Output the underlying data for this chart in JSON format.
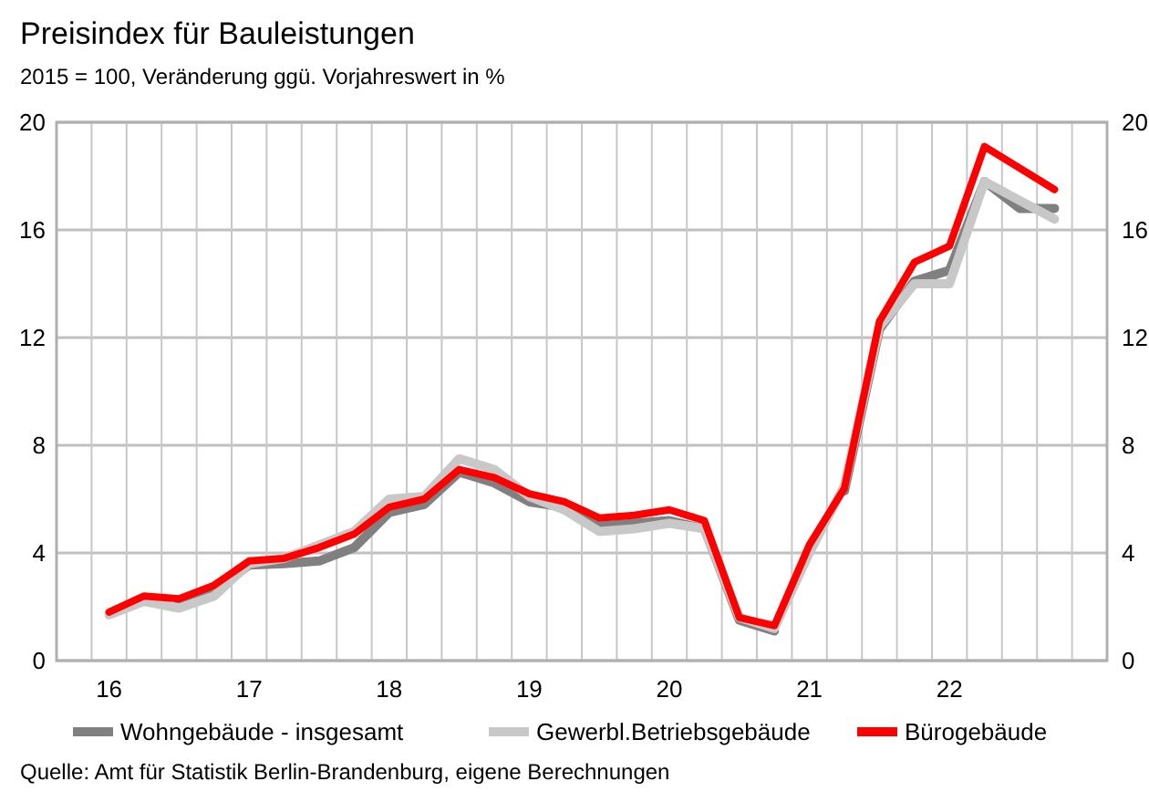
{
  "chart_data": {
    "type": "line",
    "title": "Preisindex für Bauleistungen",
    "subtitle": "2015 = 100, Veränderung ggü. Vorjahreswert in %",
    "x": [
      2016,
      2016.25,
      2016.5,
      2016.75,
      2017,
      2017.25,
      2017.5,
      2017.75,
      2018,
      2018.25,
      2018.5,
      2018.75,
      2019,
      2019.25,
      2019.5,
      2019.75,
      2020,
      2020.25,
      2020.5,
      2020.75,
      2021,
      2021.25,
      2021.5,
      2021.75,
      2022,
      2022.25,
      2022.5,
      2022.75
    ],
    "series": [
      {
        "name": "Wohngebäude - insgesamt",
        "color": "#808080",
        "values": [
          null,
          null,
          2.15,
          2.6,
          3.55,
          3.6,
          3.7,
          4.2,
          5.5,
          5.8,
          7.0,
          6.6,
          5.9,
          5.7,
          5.0,
          5.1,
          5.2,
          4.9,
          1.5,
          1.1,
          null,
          6.3,
          12.3,
          14.1,
          14.5,
          17.8,
          16.8,
          16.8
        ]
      },
      {
        "name": "Gewerbl.Betriebsgebäude",
        "color": "#c8c8c8",
        "values": [
          1.7,
          2.2,
          1.95,
          2.4,
          3.6,
          3.8,
          4.3,
          4.8,
          6.0,
          6.1,
          7.5,
          7.1,
          6.1,
          5.6,
          4.8,
          4.9,
          5.1,
          4.9,
          1.6,
          1.2,
          4.0,
          6.5,
          12.4,
          14.0,
          14.0,
          17.8,
          17.1,
          16.4
        ]
      },
      {
        "name": "Bürogebäude",
        "color": "#ff0000",
        "values": [
          1.8,
          2.4,
          2.3,
          2.8,
          3.7,
          3.8,
          4.2,
          4.7,
          5.7,
          6.0,
          7.1,
          6.8,
          6.2,
          5.9,
          5.3,
          5.4,
          5.6,
          5.2,
          1.6,
          1.3,
          4.3,
          6.4,
          12.6,
          14.8,
          15.4,
          19.1,
          18.3,
          17.5
        ]
      }
    ],
    "xlim": [
      2015.625,
      2023.125
    ],
    "xticks": [
      {
        "value": 2016,
        "label": "16"
      },
      {
        "value": 2017,
        "label": "17"
      },
      {
        "value": 2018,
        "label": "18"
      },
      {
        "value": 2019,
        "label": "19"
      },
      {
        "value": 2020,
        "label": "20"
      },
      {
        "value": 2021,
        "label": "21"
      },
      {
        "value": 2022,
        "label": "22"
      },
      {
        "value": 2015.875,
        "label": null
      },
      {
        "value": 2016.125,
        "label": null
      },
      {
        "value": 2016.375,
        "label": null
      },
      {
        "value": 2016.625,
        "label": null
      },
      {
        "value": 2016.875,
        "label": null
      },
      {
        "value": 2017.125,
        "label": null
      },
      {
        "value": 2017.375,
        "label": null
      },
      {
        "value": 2017.625,
        "label": null
      },
      {
        "value": 2017.875,
        "label": null
      },
      {
        "value": 2018.125,
        "label": null
      },
      {
        "value": 2018.375,
        "label": null
      },
      {
        "value": 2018.625,
        "label": null
      },
      {
        "value": 2018.875,
        "label": null
      },
      {
        "value": 2019.125,
        "label": null
      },
      {
        "value": 2019.375,
        "label": null
      },
      {
        "value": 2019.625,
        "label": null
      },
      {
        "value": 2019.875,
        "label": null
      },
      {
        "value": 2020.125,
        "label": null
      },
      {
        "value": 2020.375,
        "label": null
      },
      {
        "value": 2020.625,
        "label": null
      },
      {
        "value": 2020.875,
        "label": null
      },
      {
        "value": 2021.125,
        "label": null
      },
      {
        "value": 2021.375,
        "label": null
      },
      {
        "value": 2021.625,
        "label": null
      },
      {
        "value": 2021.875,
        "label": null
      },
      {
        "value": 2022.125,
        "label": null
      },
      {
        "value": 2022.375,
        "label": null
      },
      {
        "value": 2022.625,
        "label": null
      },
      {
        "value": 2022.875,
        "label": null
      }
    ],
    "ylim": [
      0,
      20
    ],
    "yticks": [
      0,
      4,
      8,
      12,
      16,
      20
    ],
    "y2lim": [
      0,
      20
    ],
    "y2ticks": [
      0,
      4,
      8,
      12,
      16,
      20
    ],
    "grid": true,
    "legend": "bottom",
    "marker": "none",
    "line_style": "solid",
    "annotations": [
      "Quelle:  Amt für Statistik Berlin-Brandenburg,  eigene Berechnungen"
    ]
  }
}
